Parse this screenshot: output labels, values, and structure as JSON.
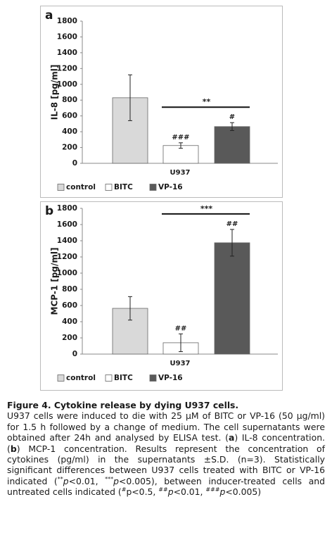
{
  "chart_data": [
    {
      "type": "bar",
      "panel_label": "a",
      "y_label": "IL-8 [pg/ml]",
      "x_label": "U937",
      "ylim": [
        0,
        1800
      ],
      "yticks": [
        0,
        200,
        400,
        600,
        800,
        1000,
        1200,
        1400,
        1600,
        1800
      ],
      "series": [
        {
          "name": "control",
          "color": "#d9d9d9",
          "values": [
            830
          ],
          "errors": [
            290
          ]
        },
        {
          "name": "BITC",
          "color": "#ffffff",
          "values": [
            225
          ],
          "errors": [
            35
          ],
          "significance": [
            "###"
          ]
        },
        {
          "name": "VP-16",
          "color": "#595959",
          "values": [
            465
          ],
          "errors": [
            50
          ],
          "significance": [
            "#"
          ]
        }
      ],
      "bracket_label": "**"
    },
    {
      "type": "bar",
      "panel_label": "b",
      "y_label": "MCP-1 [pg/ml]",
      "x_label": "U937",
      "ylim": [
        0,
        1800
      ],
      "yticks": [
        0,
        200,
        400,
        600,
        800,
        1000,
        1200,
        1400,
        1600,
        1800
      ],
      "series": [
        {
          "name": "control",
          "color": "#d9d9d9",
          "values": [
            565
          ],
          "errors": [
            145
          ]
        },
        {
          "name": "BITC",
          "color": "#ffffff",
          "values": [
            140
          ],
          "errors": [
            110
          ],
          "significance": [
            "##"
          ]
        },
        {
          "name": "VP-16",
          "color": "#595959",
          "values": [
            1375
          ],
          "errors": [
            165
          ],
          "significance": [
            "##"
          ]
        }
      ],
      "bracket_label": "***"
    }
  ],
  "caption": {
    "title": "Figure 4. Cytokine release by dying U937 cells.",
    "body": [
      "U937 cells were induced to die with 25 µM of BITC or VP-16 (50 µg/ml) for 1.5 h followed by a change of medium. The cell supernatants were obtained after 24h and analysed by ELISA test. (",
      "a",
      ") IL-8 concentration. (",
      "b",
      ") MCP-1 concentration. Results represent the concentration of cytokines (pg/ml) in the supernatants ±S.D. (n=3). Statistically significant differences between U937 cells treated with BITC or VP-16 indicated (",
      "**",
      "p",
      "<0.01, ",
      "***",
      "p",
      "<0.005), between inducer-treated cells and untreated cells indicated (",
      "#",
      "p<0.5, ",
      "##",
      "p",
      "<0.01, ",
      "###",
      "p",
      "<0.005)"
    ]
  }
}
